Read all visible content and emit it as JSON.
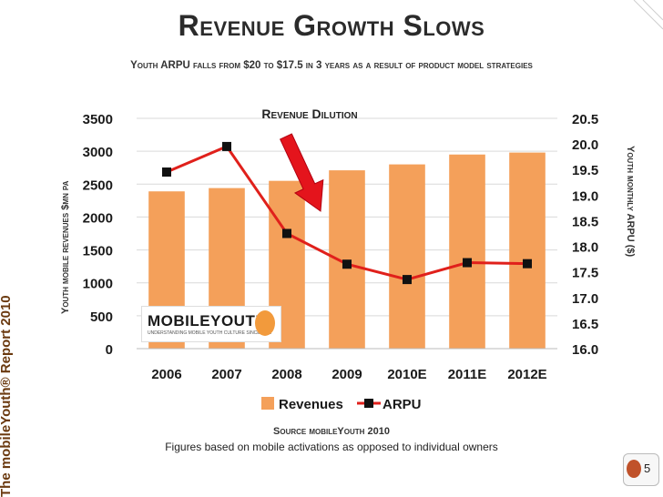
{
  "slide": {
    "title": "Revenue Growth Slows",
    "subtitle": "Youth ARPU falls from $20 to $17.5 in 3 years as a result of product model strategies",
    "side_label": "The mobileYouth® Report 2010",
    "source": "Source mobileYouth 2010",
    "note": "Figures based on mobile activations as opposed to individual owners",
    "page_number": "5",
    "logo_text": "MOBILEYOUTH",
    "logo_subtext": "UNDERSTANDING MOBILE YOUTH CULTURE SINCE 2001"
  },
  "chart_data": {
    "type": "bar",
    "categories": [
      "2006",
      "2007",
      "2008",
      "2009",
      "2010E",
      "2011E",
      "2012E"
    ],
    "series": [
      {
        "name": "Revenues",
        "type": "bar",
        "axis": "left",
        "color": "#f4a05a",
        "values": [
          2390,
          2440,
          2550,
          2710,
          2800,
          2950,
          2980
        ]
      },
      {
        "name": "ARPU",
        "type": "line",
        "axis": "right",
        "color": "#e0201b",
        "values": [
          19.45,
          19.95,
          18.25,
          17.65,
          17.35,
          17.68,
          17.66
        ]
      }
    ],
    "annotation": "Revenue Dilution",
    "ylabel": "Youth mobile revenues $mn pa",
    "ylabel_right": "Youth monthly ARPU ($)",
    "ylim": [
      0,
      3500
    ],
    "yticks": [
      "0",
      "500",
      "1000",
      "1500",
      "2000",
      "2500",
      "3000",
      "3500"
    ],
    "ylim_right": [
      16.0,
      20.5
    ],
    "yticks_right": [
      "16.0",
      "16.5",
      "17.0",
      "17.5",
      "18.0",
      "18.5",
      "19.0",
      "19.5",
      "20.0",
      "20.5"
    ],
    "grid": true,
    "legend_position": "bottom"
  }
}
